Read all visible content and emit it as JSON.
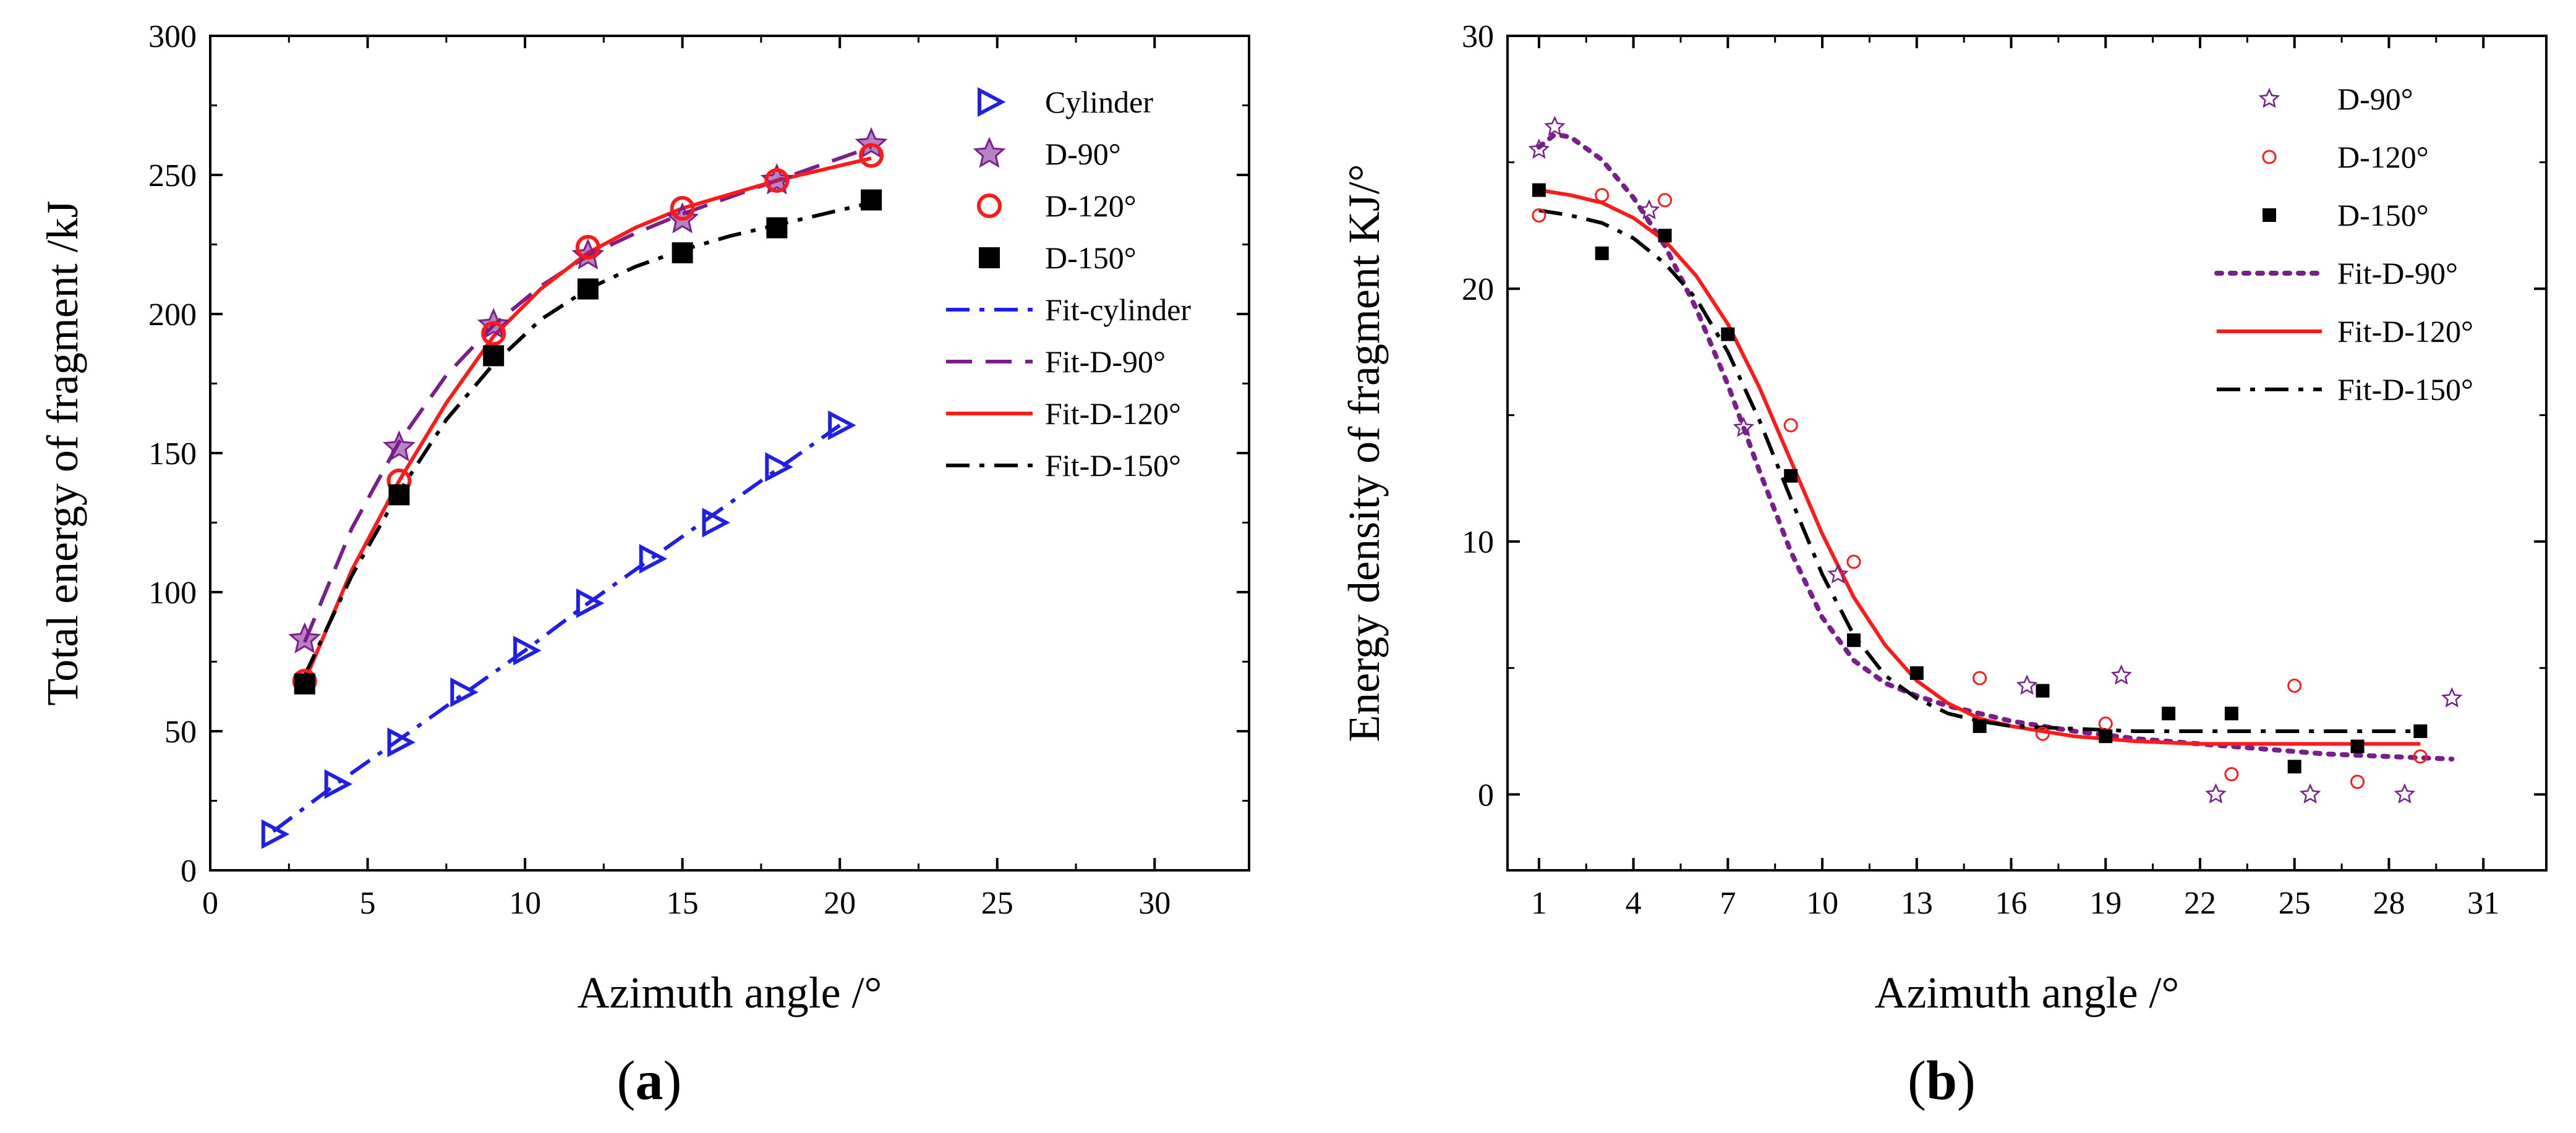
{
  "chart_data": [
    {
      "type": "scatter",
      "panel_label": "(a)",
      "panel_letter": "a",
      "xlabel": "Azimuth angle /°",
      "ylabel": "Total energy of fragment /kJ",
      "xlim": [
        0,
        33
      ],
      "ylim": [
        0,
        300
      ],
      "xticks": [
        0,
        5,
        10,
        15,
        20,
        25,
        30
      ],
      "yticks": [
        0,
        50,
        100,
        150,
        200,
        250,
        300
      ],
      "legend_position": "top-right",
      "series": [
        {
          "name": "Cylinder",
          "kind": "points",
          "marker": "triangle-right-open",
          "color": "#1f1fe6",
          "x": [
            2,
            4,
            6,
            8,
            10,
            12,
            14,
            16,
            18,
            20
          ],
          "y": [
            13,
            31,
            46,
            64,
            79,
            96,
            112,
            125,
            145,
            160
          ]
        },
        {
          "name": "D-90°",
          "kind": "points",
          "marker": "star-filled",
          "color": "#7a1e8c",
          "x": [
            3,
            6,
            9,
            12,
            15,
            18,
            21
          ],
          "y": [
            83,
            152,
            196,
            221,
            234,
            248,
            261
          ]
        },
        {
          "name": "D-120°",
          "kind": "points",
          "marker": "circle-open",
          "color": "#ff1a1a",
          "x": [
            3,
            6,
            9,
            12,
            15,
            18,
            21
          ],
          "y": [
            68,
            140,
            193,
            224,
            238,
            248,
            257
          ]
        },
        {
          "name": "D-150°",
          "kind": "points",
          "marker": "square-filled",
          "color": "#000000",
          "x": [
            3,
            6,
            9,
            12,
            15,
            18,
            21
          ],
          "y": [
            67,
            135,
            185,
            209,
            222,
            231,
            241
          ]
        },
        {
          "name": "Fit-cylinder",
          "kind": "line",
          "dash": "dashdot",
          "color": "#1f1fe6",
          "x": [
            2,
            4,
            6,
            8,
            10,
            12,
            14,
            16,
            18,
            20
          ],
          "y": [
            14,
            31,
            47,
            63,
            79,
            96,
            112,
            128,
            144,
            160
          ]
        },
        {
          "name": "Fit-D-90°",
          "kind": "line",
          "dash": "dash",
          "color": "#7a1e8c",
          "x": [
            3,
            4.5,
            6,
            7.5,
            9,
            10.5,
            12,
            13.5,
            15,
            16.5,
            18,
            19.5,
            21
          ],
          "y": [
            82,
            123,
            154,
            178,
            196,
            210,
            221,
            229,
            236,
            242,
            248,
            254,
            260
          ]
        },
        {
          "name": "Fit-D-120°",
          "kind": "line",
          "dash": "solid",
          "color": "#ff1a1a",
          "x": [
            3,
            4.5,
            6,
            7.5,
            9,
            10.5,
            12,
            13.5,
            15,
            16.5,
            18,
            19.5,
            21
          ],
          "y": [
            68,
            108,
            140,
            168,
            192,
            209,
            222,
            231,
            238,
            243,
            248,
            252,
            256
          ]
        },
        {
          "name": "Fit-D-150°",
          "kind": "line",
          "dash": "dashdot",
          "color": "#000000",
          "x": [
            3,
            4.5,
            6,
            7.5,
            9,
            10.5,
            12,
            13.5,
            15,
            16.5,
            18,
            19.5,
            21
          ],
          "y": [
            70,
            106,
            136,
            162,
            182,
            198,
            209,
            217,
            223,
            228,
            232,
            236,
            240
          ]
        }
      ]
    },
    {
      "type": "scatter",
      "panel_label": "(b)",
      "panel_letter": "b",
      "xlabel": "Azimuth angle /°",
      "ylabel": "Energy density of fragment KJ/°",
      "xlim": [
        0,
        33
      ],
      "ylim": [
        -3,
        30
      ],
      "xticks": [
        1,
        4,
        7,
        10,
        13,
        16,
        19,
        22,
        25,
        28,
        31
      ],
      "yticks": [
        0,
        10,
        20,
        30
      ],
      "legend_position": "top-right",
      "series": [
        {
          "name": "D-90°",
          "kind": "points",
          "marker": "star-open",
          "color": "#7a1e8c",
          "x": [
            1,
            1.5,
            4.5,
            7.5,
            10.5,
            16.5,
            19.5,
            22.5,
            25.5,
            28.5,
            30
          ],
          "y": [
            25.5,
            26.4,
            23.1,
            14.5,
            8.7,
            4.3,
            4.7,
            0,
            0,
            0,
            3.8
          ]
        },
        {
          "name": "D-120°",
          "kind": "points",
          "marker": "circle-open-small",
          "color": "#ff1a1a",
          "x": [
            1,
            3,
            5,
            9,
            11,
            15,
            17,
            19,
            23,
            25,
            27,
            29
          ],
          "y": [
            22.9,
            23.7,
            23.5,
            14.6,
            9.2,
            4.6,
            2.4,
            2.8,
            0.8,
            4.3,
            0.5,
            1.5
          ]
        },
        {
          "name": "D-150°",
          "kind": "points",
          "marker": "square-filled-small",
          "color": "#000000",
          "x": [
            1,
            3,
            5,
            7,
            9,
            11,
            13,
            15,
            17,
            19,
            21,
            23,
            25,
            27,
            29
          ],
          "y": [
            23.9,
            21.4,
            22.1,
            18.2,
            12.6,
            6.1,
            4.8,
            2.7,
            4.1,
            2.3,
            3.2,
            3.2,
            1.1,
            1.9,
            2.5
          ]
        },
        {
          "name": "Fit-D-90°",
          "kind": "line",
          "dash": "dot",
          "color": "#7a1e8c",
          "x": [
            1,
            1.5,
            2,
            3,
            4,
            5,
            6,
            7,
            8,
            9,
            10,
            11,
            12,
            13,
            14,
            16,
            18,
            20,
            22,
            24,
            26,
            28,
            30
          ],
          "y": [
            25.6,
            26.1,
            26.0,
            25.1,
            23.6,
            21.7,
            19.2,
            16.2,
            12.8,
            9.6,
            7.0,
            5.3,
            4.4,
            3.9,
            3.5,
            2.9,
            2.5,
            2.2,
            2.0,
            1.8,
            1.6,
            1.5,
            1.4
          ]
        },
        {
          "name": "Fit-D-120°",
          "kind": "line",
          "dash": "solid",
          "color": "#ff1a1a",
          "x": [
            1,
            2,
            3,
            4,
            5,
            6,
            7,
            8,
            9,
            10,
            11,
            12,
            13,
            14,
            15,
            16,
            18,
            20,
            22,
            24,
            26,
            28,
            29
          ],
          "y": [
            23.9,
            23.7,
            23.4,
            22.8,
            21.9,
            20.5,
            18.6,
            16.1,
            13.2,
            10.3,
            7.8,
            5.9,
            4.5,
            3.6,
            3.0,
            2.7,
            2.3,
            2.1,
            2.0,
            2.0,
            2.0,
            2.0,
            2.0
          ]
        },
        {
          "name": "Fit-D-150°",
          "kind": "line",
          "dash": "dashdot",
          "color": "#000000",
          "x": [
            1,
            2,
            3,
            4,
            5,
            6,
            7,
            8,
            9,
            10,
            11,
            12,
            13,
            14,
            15,
            16,
            18,
            20,
            22,
            24,
            26,
            28,
            29
          ],
          "y": [
            23.1,
            22.9,
            22.6,
            22.0,
            21.0,
            19.6,
            17.5,
            14.8,
            11.7,
            8.7,
            6.3,
            4.7,
            3.8,
            3.2,
            2.9,
            2.7,
            2.6,
            2.5,
            2.5,
            2.5,
            2.5,
            2.5,
            2.5
          ]
        }
      ]
    }
  ]
}
